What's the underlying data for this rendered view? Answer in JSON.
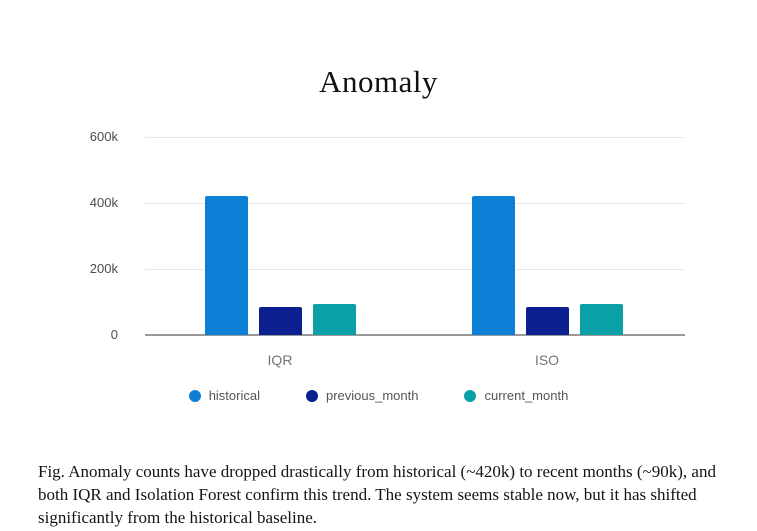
{
  "page": {
    "title": "Anomaly"
  },
  "chart_data": {
    "type": "bar",
    "title": "Anomaly",
    "categories": [
      "IQR",
      "ISO"
    ],
    "series": [
      {
        "name": "historical",
        "color": "#0e7fd6",
        "values": [
          420000,
          420000
        ]
      },
      {
        "name": "previous_month",
        "color": "#0d2090",
        "values": [
          85000,
          85000
        ]
      },
      {
        "name": "current_month",
        "color": "#0ba0a8",
        "values": [
          95000,
          95000
        ]
      }
    ],
    "ylim": [
      0,
      600000
    ],
    "yticks": [
      {
        "value": 600000,
        "label": "600k"
      },
      {
        "value": 400000,
        "label": "400k"
      },
      {
        "value": 200000,
        "label": "200k"
      },
      {
        "value": 0,
        "label": "0"
      }
    ],
    "grid": true,
    "legend_position": "bottom",
    "xlabel": "",
    "ylabel": ""
  },
  "caption": {
    "text": "Fig. Anomaly counts have dropped drastically from historical (~420k) to recent months (~90k), and both IQR and Isolation Forest confirm this trend. The system seems stable now, but it has shifted significantly from the historical baseline."
  }
}
